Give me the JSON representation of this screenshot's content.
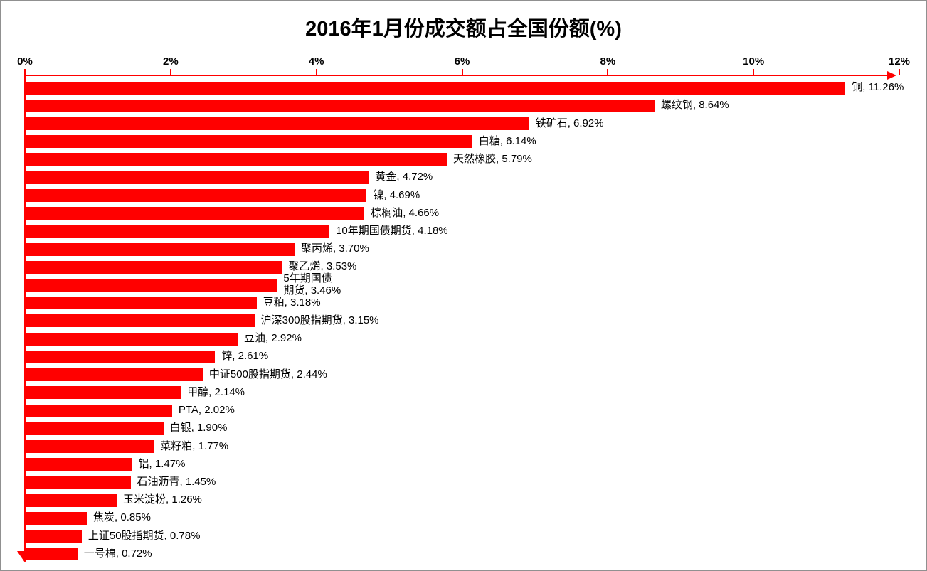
{
  "chart_data": {
    "type": "bar",
    "orientation": "horizontal",
    "title": "2016年1月份成交额占全国份额(%)",
    "xlabel": "",
    "ylabel": "",
    "grid": false,
    "legend": "none",
    "bar_color": "#FF0000",
    "axis_color": "#FF0000",
    "text_color": "#000000",
    "value_axis": {
      "position": "top",
      "min": 0,
      "max": 12,
      "tick_step": 2,
      "ticks": [
        "0%",
        "2%",
        "4%",
        "6%",
        "8%",
        "10%",
        "12%"
      ]
    },
    "series": [
      {
        "name": "铜",
        "value": 11.26,
        "label": "铜, 11.26%"
      },
      {
        "name": "螺纹钢",
        "value": 8.64,
        "label": "螺纹钢, 8.64%"
      },
      {
        "name": "铁矿石",
        "value": 6.92,
        "label": "铁矿石, 6.92%"
      },
      {
        "name": "白糖",
        "value": 6.14,
        "label": "白糖, 6.14%"
      },
      {
        "name": "天然橡胶",
        "value": 5.79,
        "label": "天然橡胶, 5.79%"
      },
      {
        "name": "黄金",
        "value": 4.72,
        "label": "黄金, 4.72%"
      },
      {
        "name": "镍",
        "value": 4.69,
        "label": "镍, 4.69%"
      },
      {
        "name": "棕榈油",
        "value": 4.66,
        "label": "棕榈油, 4.66%"
      },
      {
        "name": "10年期国债期货",
        "value": 4.18,
        "label": "10年期国债期货, 4.18%"
      },
      {
        "name": "聚丙烯",
        "value": 3.7,
        "label": "聚丙烯, 3.70%"
      },
      {
        "name": "聚乙烯",
        "value": 3.53,
        "label": "聚乙烯, 3.53%"
      },
      {
        "name": "5年期国债期货",
        "value": 3.46,
        "label": "5年期国债\n期货, 3.46%"
      },
      {
        "name": "豆粕",
        "value": 3.18,
        "label": "豆粕, 3.18%"
      },
      {
        "name": "沪深300股指期货",
        "value": 3.15,
        "label": "沪深300股指期货, 3.15%"
      },
      {
        "name": "豆油",
        "value": 2.92,
        "label": "豆油, 2.92%"
      },
      {
        "name": "锌",
        "value": 2.61,
        "label": "锌, 2.61%"
      },
      {
        "name": "中证500股指期货",
        "value": 2.44,
        "label": "中证500股指期货, 2.44%"
      },
      {
        "name": "甲醇",
        "value": 2.14,
        "label": "甲醇, 2.14%"
      },
      {
        "name": "PTA",
        "value": 2.02,
        "label": "PTA, 2.02%"
      },
      {
        "name": "白银",
        "value": 1.9,
        "label": "白银, 1.90%"
      },
      {
        "name": "菜籽粕",
        "value": 1.77,
        "label": "菜籽粕, 1.77%"
      },
      {
        "name": "铝",
        "value": 1.47,
        "label": "铝, 1.47%"
      },
      {
        "name": "石油沥青",
        "value": 1.45,
        "label": "石油沥青, 1.45%"
      },
      {
        "name": "玉米淀粉",
        "value": 1.26,
        "label": "玉米淀粉, 1.26%"
      },
      {
        "name": "焦炭",
        "value": 0.85,
        "label": "焦炭, 0.85%"
      },
      {
        "name": "上证50股指期货",
        "value": 0.78,
        "label": "上证50股指期货, 0.78%"
      },
      {
        "name": "一号棉",
        "value": 0.72,
        "label": "一号棉, 0.72%"
      }
    ]
  }
}
